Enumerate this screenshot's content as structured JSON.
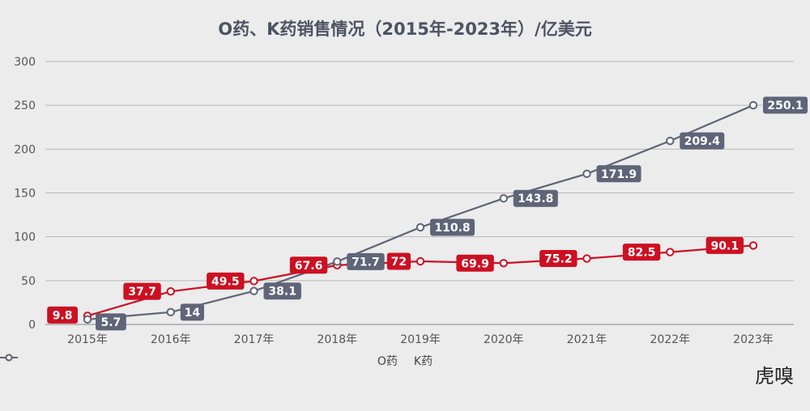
{
  "watermark": "虎嗅",
  "chart_data": {
    "type": "line",
    "title": "O药、K药销售情况（2015年-2023年）/亿美元",
    "categories": [
      "2015年",
      "2016年",
      "2017年",
      "2018年",
      "2019年",
      "2020年",
      "2021年",
      "2022年",
      "2023年"
    ],
    "series": [
      {
        "name": "O药",
        "color": "#cc1022",
        "values": [
          9.8,
          37.7,
          49.5,
          67.6,
          72,
          69.9,
          75.2,
          82.5,
          90.1
        ],
        "labels": [
          "9.8",
          "37.7",
          "49.5",
          "67.6",
          "72",
          "69.9",
          "75.2",
          "82.5",
          "90.1"
        ]
      },
      {
        "name": "K药",
        "color": "#5f6478",
        "values": [
          5.7,
          14,
          38.1,
          71.7,
          110.8,
          143.8,
          171.9,
          209.4,
          250.1
        ],
        "labels": [
          "5.7",
          "14",
          "38.1",
          "71.7",
          "110.8",
          "143.8",
          "171.9",
          "209.4",
          "250.1"
        ]
      }
    ],
    "yticks": [
      "0",
      "50",
      "100",
      "150",
      "200",
      "250",
      "300"
    ],
    "ylim": [
      0,
      300
    ],
    "grid": true,
    "legend_position": "bottom-center"
  }
}
